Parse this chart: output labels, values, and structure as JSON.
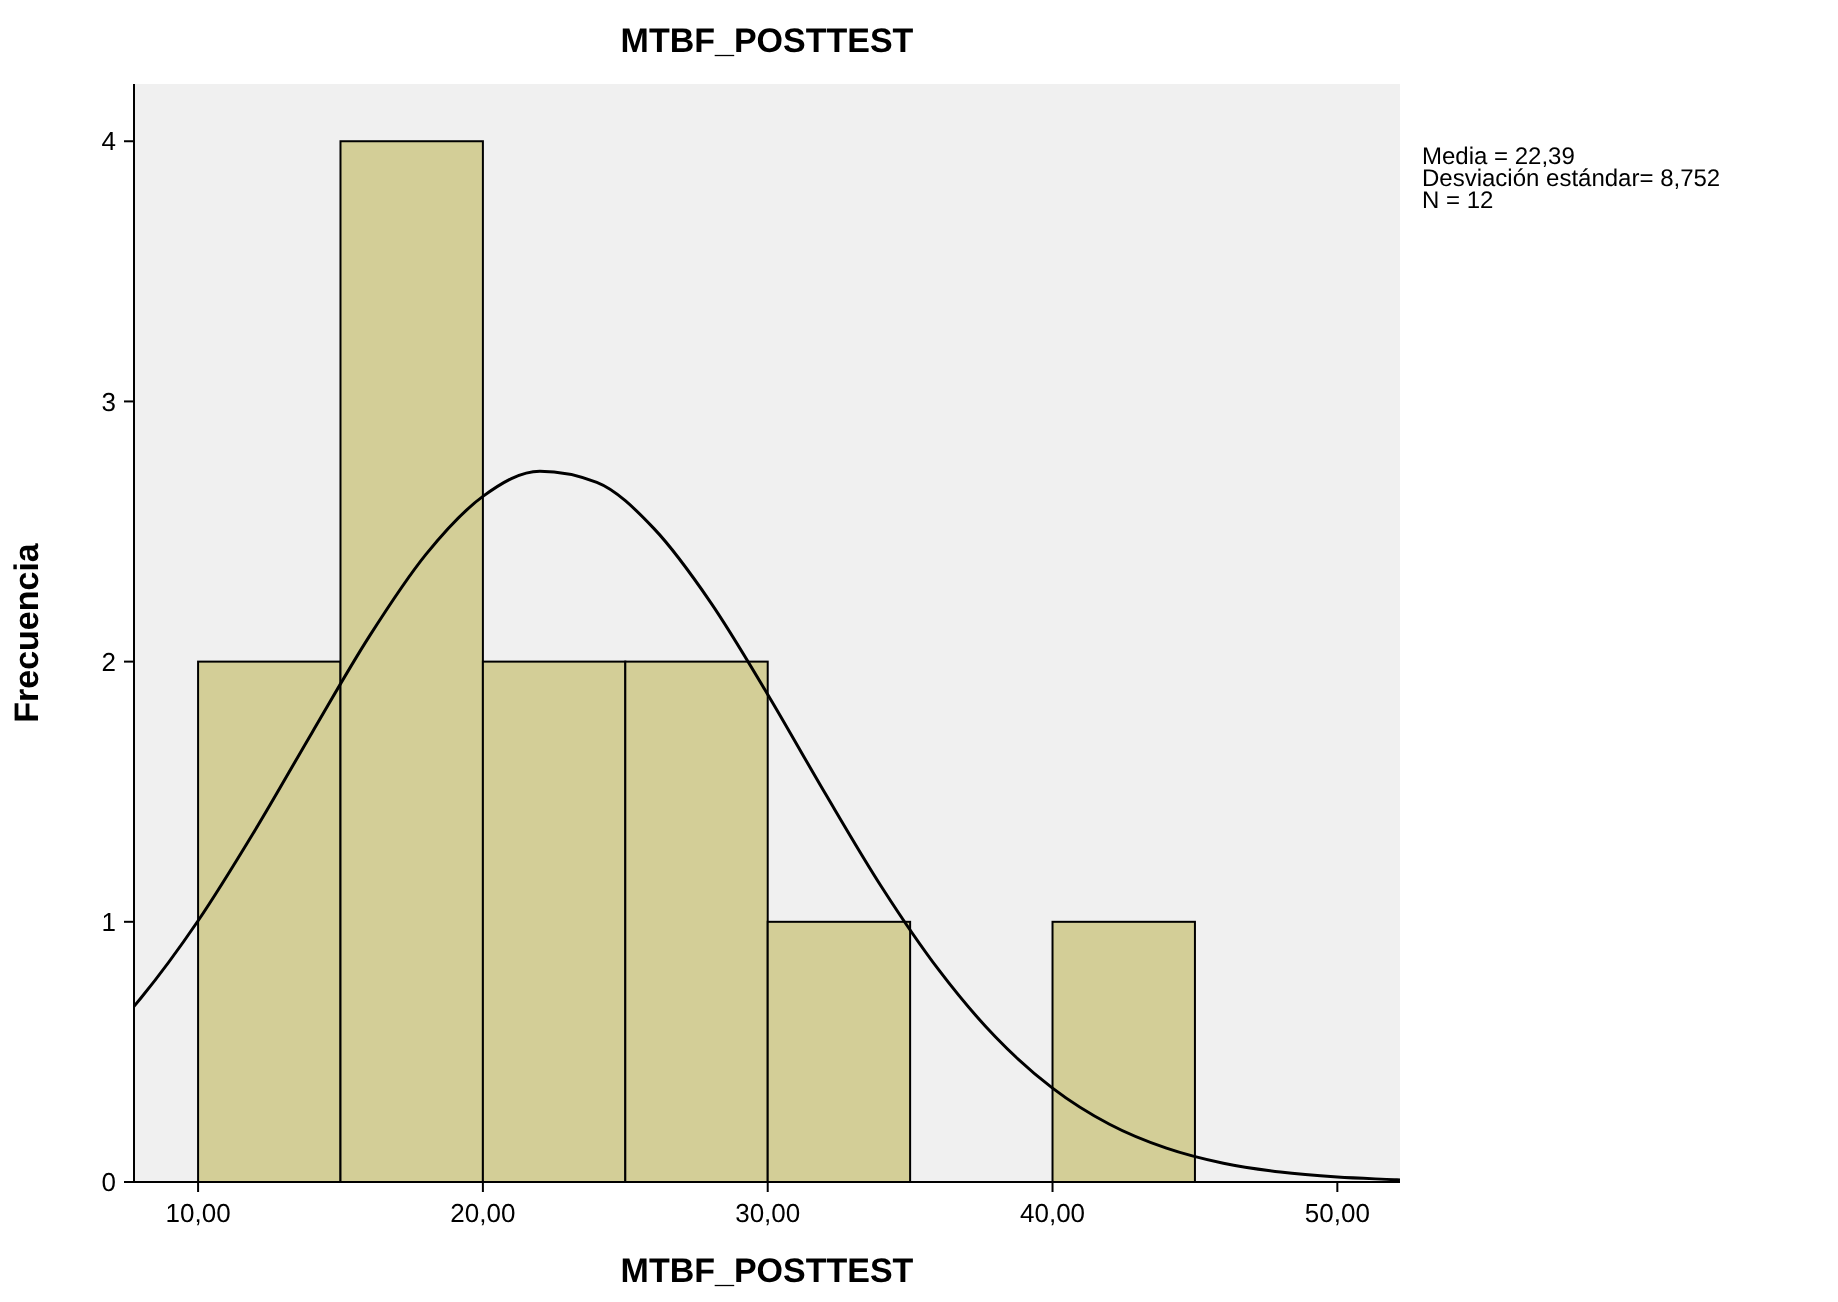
{
  "chart_data": {
    "type": "histogram",
    "title": "MTBF_POSTTEST",
    "xlabel": "MTBF_POSTTEST",
    "ylabel": "Frecuencia",
    "bins": [
      10,
      15,
      20,
      25,
      30,
      35,
      40,
      45
    ],
    "values": [
      2,
      4,
      2,
      2,
      1,
      0,
      1
    ],
    "color": "#d3ce97",
    "series": [
      {
        "type": "line",
        "color": "#000000",
        "x": [
          7.75,
          8,
          10,
          12,
          14,
          16,
          18,
          20,
          22,
          24,
          26,
          28,
          30,
          32,
          34,
          36,
          38,
          40,
          42,
          44,
          46,
          48,
          50,
          52,
          52.2
        ],
        "values": [
          0.675,
          0.708,
          1.004,
          1.352,
          1.727,
          2.095,
          2.412,
          2.635,
          2.732,
          2.689,
          2.512,
          2.227,
          1.874,
          1.497,
          1.134,
          0.816,
          0.557,
          0.361,
          0.222,
          0.13,
          0.072,
          0.038,
          0.019,
          0.009,
          0.008
        ]
      }
    ],
    "xlim": [
      7.75,
      52.2
    ],
    "ylim": [
      0,
      4.22
    ],
    "xticks": [
      {
        "value": 10,
        "label": "10,00"
      },
      {
        "value": 20,
        "label": "20,00"
      },
      {
        "value": 30,
        "label": "30,00"
      },
      {
        "value": 40,
        "label": "40,00"
      },
      {
        "value": 50,
        "label": "50,00"
      }
    ],
    "yticks": [
      0,
      1,
      2,
      3,
      4
    ],
    "grid": false,
    "marker": "none",
    "line_style": "solid",
    "annotations": [
      "Media = 22,39",
      "Desviación estándar= 8,752",
      "N = 12"
    ]
  }
}
